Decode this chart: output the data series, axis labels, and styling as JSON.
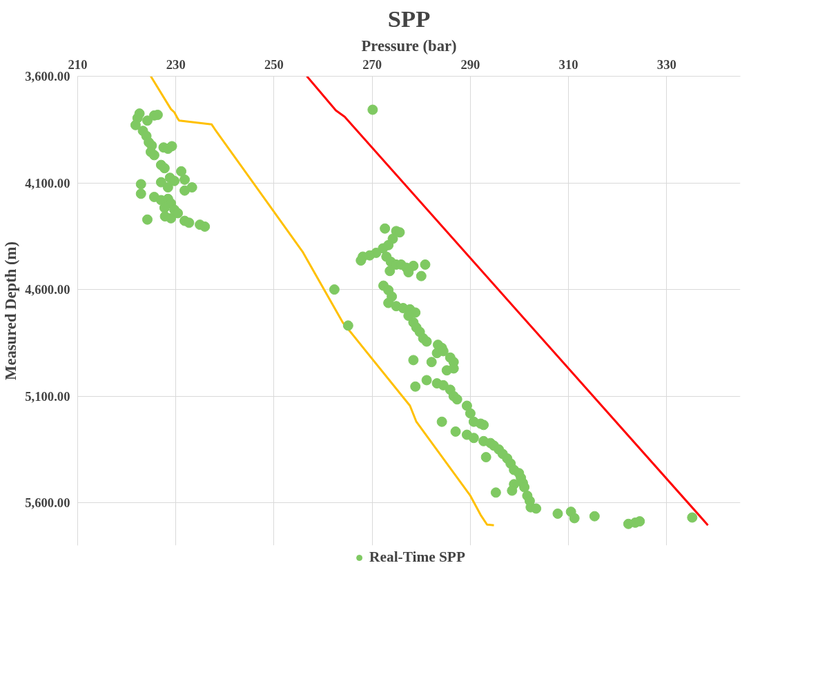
{
  "chart_data": {
    "type": "scatter",
    "title": "SPP",
    "xlabel": "Pressure (bar)",
    "ylabel": "Measured Depth (m)",
    "xlim": [
      210,
      345
    ],
    "xticks": [
      210,
      230,
      250,
      270,
      290,
      310,
      330
    ],
    "ylim": [
      5800,
      3600
    ],
    "yticks": [
      {
        "value": 3600,
        "label": "3,600.00"
      },
      {
        "value": 4100,
        "label": "4,100.00"
      },
      {
        "value": 4600,
        "label": "4,600.00"
      },
      {
        "value": 5100,
        "label": "5,100.00"
      },
      {
        "value": 5600,
        "label": "5,600.00"
      }
    ],
    "grid": true,
    "legend": "bottom",
    "series": [
      {
        "type": "line",
        "color": "#ff0000",
        "x": [
          256.7,
          262.6,
          264.4,
          338.4
        ],
        "values": [
          3600,
          3760,
          3790,
          5705
        ]
      },
      {
        "type": "line",
        "color": "#ffc000",
        "x": [
          224.9,
          229.0,
          229.7,
          230.4,
          230.7,
          237.3,
          238.0,
          255.8,
          264.0,
          277.7,
          279.0,
          290.0,
          292.1,
          293.4,
          294.8
        ],
        "values": [
          3600,
          3754,
          3769,
          3799,
          3808,
          3826,
          3850,
          4422,
          4754,
          5145,
          5220,
          5567,
          5657,
          5702,
          5705
        ]
      },
      {
        "name": "Real-Time SPP",
        "color": "#7fc962",
        "marker": "circle",
        "x": [
          222.6,
          222.2,
          221.8,
          224.2,
          225.6,
          226.3,
          223.3,
          224.0,
          224.5,
          225.1,
          224.9,
          225.6,
          227.5,
          228.4,
          229.2,
          227.0,
          227.7,
          228.8,
          229.7,
          231.1,
          231.8,
          227.0,
          222.9,
          228.4,
          231.8,
          233.3,
          222.9,
          225.6,
          227.0,
          228.4,
          229.0,
          227.7,
          229.7,
          227.8,
          229.0,
          224.2,
          231.8,
          232.7,
          234.9,
          235.9,
          230.4,
          270.1,
          262.3,
          265.1,
          272.6,
          274.9,
          275.6,
          274.2,
          273.3,
          272.2,
          270.8,
          269.5,
          268.1,
          267.7,
          272.9,
          273.8,
          274.9,
          275.9,
          277.0,
          278.4,
          280.8,
          273.6,
          277.4,
          280.0,
          272.3,
          273.3,
          274.0,
          273.3,
          274.9,
          276.3,
          277.7,
          278.8,
          277.4,
          278.4,
          279.0,
          279.7,
          280.4,
          281.1,
          283.4,
          284.2,
          283.2,
          284.5,
          285.9,
          286.6,
          282.1,
          286.6,
          285.2,
          281.1,
          283.2,
          284.5,
          285.9,
          286.6,
          287.3,
          278.8,
          278.4,
          289.3,
          290.0,
          290.7,
          292.1,
          292.7,
          284.2,
          287.0,
          289.3,
          290.7,
          292.7,
          294.1,
          294.8,
          295.8,
          296.6,
          297.5,
          298.2,
          293.2,
          298.9,
          299.9,
          300.3,
          300.7,
          298.9,
          298.5,
          295.2,
          301.0,
          301.6,
          302.1,
          302.3,
          303.4,
          307.8,
          310.5,
          311.2,
          315.3,
          322.2,
          323.6,
          324.5,
          335.2
        ],
        "values": [
          3775,
          3796,
          3829,
          3808,
          3784,
          3781,
          3856,
          3880,
          3910,
          3925,
          3955,
          3970,
          3934,
          3940,
          3928,
          4016,
          4031,
          4076,
          4091,
          4046,
          4085,
          4097,
          4106,
          4121,
          4136,
          4121,
          4151,
          4166,
          4181,
          4175,
          4196,
          4217,
          4226,
          4257,
          4266,
          4272,
          4278,
          4287,
          4296,
          4305,
          4242,
          3757,
          4600,
          4769,
          4314,
          4326,
          4332,
          4362,
          4392,
          4407,
          4428,
          4440,
          4446,
          4464,
          4446,
          4470,
          4483,
          4483,
          4498,
          4489,
          4483,
          4513,
          4519,
          4537,
          4582,
          4603,
          4633,
          4663,
          4678,
          4687,
          4693,
          4708,
          4723,
          4754,
          4778,
          4799,
          4829,
          4844,
          4859,
          4874,
          4898,
          4889,
          4919,
          4940,
          4940,
          4970,
          4979,
          5025,
          5040,
          5049,
          5070,
          5100,
          5115,
          5055,
          4931,
          5145,
          5181,
          5220,
          5229,
          5235,
          5220,
          5266,
          5281,
          5296,
          5311,
          5320,
          5332,
          5350,
          5371,
          5392,
          5416,
          5386,
          5446,
          5461,
          5483,
          5507,
          5513,
          5543,
          5552,
          5527,
          5567,
          5591,
          5621,
          5627,
          5651,
          5642,
          5672,
          5663,
          5699,
          5693,
          5687,
          5669
        ]
      }
    ]
  }
}
